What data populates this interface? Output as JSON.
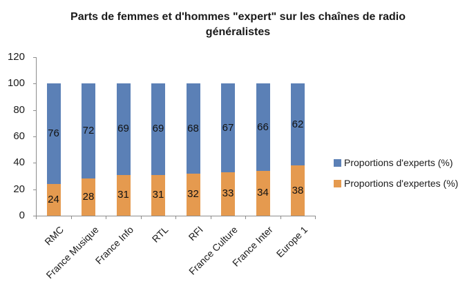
{
  "chart_data": {
    "type": "bar",
    "stacked": true,
    "title": "Parts de femmes et d'hommes \"expert\" sur les chaînes de radio généralistes",
    "title_lines": [
      "Parts de femmes et d'hommes \"expert\" sur les chaînes de radio",
      "généralistes"
    ],
    "xlabel": "",
    "ylabel": "",
    "ylim": [
      0,
      120
    ],
    "yticks": [
      0,
      20,
      40,
      60,
      80,
      100,
      120
    ],
    "grid": false,
    "legend_position": "right",
    "categories": [
      "RMC",
      "France Musique",
      "France Info",
      "RTL",
      "RFI",
      "France Culture",
      "France Inter",
      "Europe 1"
    ],
    "series": [
      {
        "name": "Proportions d'expertes (%)",
        "color": "#E59A4F",
        "values": [
          24,
          28,
          31,
          31,
          32,
          33,
          34,
          38
        ]
      },
      {
        "name": "Proportions d'experts (%)",
        "color": "#5B80B6",
        "values": [
          76,
          72,
          69,
          69,
          68,
          67,
          66,
          62
        ]
      }
    ],
    "legend_order": [
      "Proportions d'experts (%)",
      "Proportions d'expertes (%)"
    ]
  }
}
